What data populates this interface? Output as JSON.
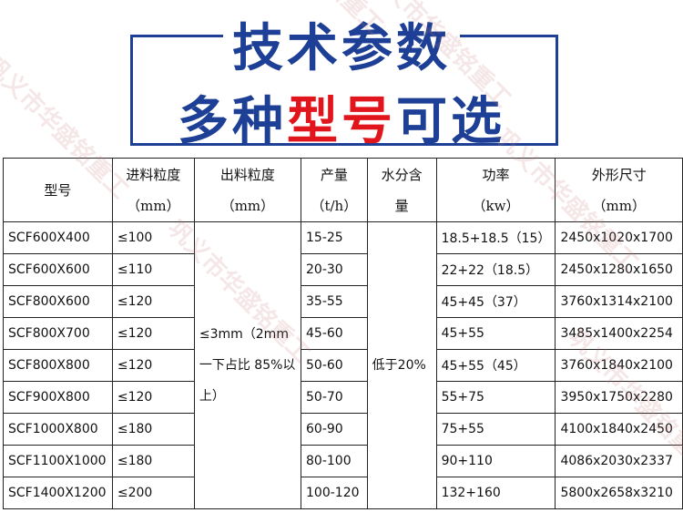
{
  "title": {
    "line1": "技术参数",
    "line2_a": "多种",
    "line2_b": "型号",
    "line2_c": "可选"
  },
  "colors": {
    "title": "#1d3f95",
    "accent": "#e0161c"
  },
  "watermark": "巩义市华盛铭重工",
  "table": {
    "headers": [
      {
        "l1": "型号",
        "l2": ""
      },
      {
        "l1": "进料粒度",
        "l2": "（mm）"
      },
      {
        "l1": "出料粒度",
        "l2": "（mm）"
      },
      {
        "l1": "产量",
        "l2": "（t/h）"
      },
      {
        "l1": "水分含",
        "l2": "量"
      },
      {
        "l1": "功率",
        "l2": "（kw）"
      },
      {
        "l1": "外形尺寸",
        "l2": "（mm）"
      }
    ],
    "output_size": "≤3mm（2mm一下占比 85%以上）",
    "moisture": "低于20%",
    "rows": [
      {
        "model": "SCF600X400",
        "feed": "≤100",
        "capacity": "15-25",
        "power": "18.5+18.5（15）",
        "dims": "2450x1020x1700"
      },
      {
        "model": "SCF600X600",
        "feed": "≤110",
        "capacity": "20-30",
        "power": "22+22（18.5）",
        "dims": "2450x1280x1650"
      },
      {
        "model": "SCF800X600",
        "feed": "≤120",
        "capacity": "35-55",
        "power": "45+45（37）",
        "dims": "3760x1314x2100"
      },
      {
        "model": "SCF800X700",
        "feed": "≤120",
        "capacity": "45-60",
        "power": "45+55",
        "dims": "3485x1400x2254"
      },
      {
        "model": "SCF800X800",
        "feed": "≤120",
        "capacity": "50-60",
        "power": "45+55（45）",
        "dims": "3760x1840x2100"
      },
      {
        "model": "SCF900X800",
        "feed": "≤120",
        "capacity": "50-70",
        "power": "55+75",
        "dims": "3950x1750x2280"
      },
      {
        "model": "SCF1000X800",
        "feed": "≤180",
        "capacity": "60-90",
        "power": "75+55",
        "dims": "4100x1840x2450"
      },
      {
        "model": "SCF1100X1000",
        "feed": "≤180",
        "capacity": "80-100",
        "power": "90+110",
        "dims": "4086x2030x2337"
      },
      {
        "model": "SCF1400X1200",
        "feed": "≤200",
        "capacity": "100-120",
        "power": "132+160",
        "dims": "5800x2658x3210"
      }
    ]
  }
}
